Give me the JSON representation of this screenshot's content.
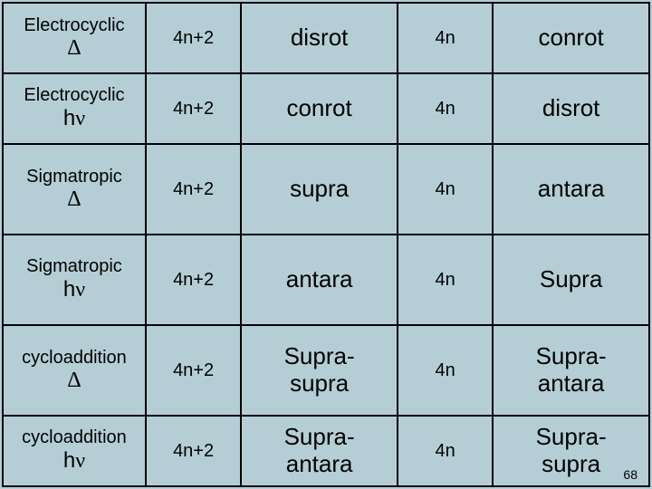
{
  "colors": {
    "background": "#b5ced6",
    "border": "#000000",
    "text": "#000000"
  },
  "pageNumber": "68",
  "rows": [
    {
      "heightClass": "r-short",
      "cells": [
        {
          "line1": "Electrocyclic",
          "line2sym": "Δ"
        },
        {
          "text": "4n+2"
        },
        {
          "text": "disrot"
        },
        {
          "text": "4n"
        },
        {
          "text": "conrot"
        }
      ]
    },
    {
      "heightClass": "r-short",
      "cells": [
        {
          "line1": "Electrocyclic",
          "line2mixed": {
            "pre": "h",
            "sym": "ν"
          }
        },
        {
          "text": "4n+2"
        },
        {
          "text": "conrot"
        },
        {
          "text": "4n"
        },
        {
          "text": "disrot"
        }
      ]
    },
    {
      "heightClass": "r-tall",
      "cells": [
        {
          "line1": "Sigmatropic",
          "line2sym": "Δ"
        },
        {
          "text": "4n+2"
        },
        {
          "text": "supra"
        },
        {
          "text": "4n"
        },
        {
          "text": "antara"
        }
      ]
    },
    {
      "heightClass": "r-tall",
      "cells": [
        {
          "line1": "Sigmatropic",
          "line2mixed": {
            "pre": "h",
            "sym": "ν"
          }
        },
        {
          "text": "4n+2"
        },
        {
          "text": "antara"
        },
        {
          "text": "4n"
        },
        {
          "text": "Supra"
        }
      ]
    },
    {
      "heightClass": "r-tall",
      "cells": [
        {
          "line1": "cycloaddition",
          "line2sym": "Δ"
        },
        {
          "text": "4n+2"
        },
        {
          "two": {
            "l1": "Supra-",
            "l2": "supra"
          }
        },
        {
          "text": "4n"
        },
        {
          "two": {
            "l1": "Supra-",
            "l2": "antara"
          }
        }
      ]
    },
    {
      "heightClass": "r-short",
      "cells": [
        {
          "line1": "cycloaddition",
          "line2mixed": {
            "pre": "h",
            "sym": "ν"
          }
        },
        {
          "text": "4n+2"
        },
        {
          "two": {
            "l1": "Supra-",
            "l2": "antara"
          }
        },
        {
          "text": "4n"
        },
        {
          "two": {
            "l1": "Supra-",
            "l2": "supra"
          }
        }
      ]
    }
  ]
}
